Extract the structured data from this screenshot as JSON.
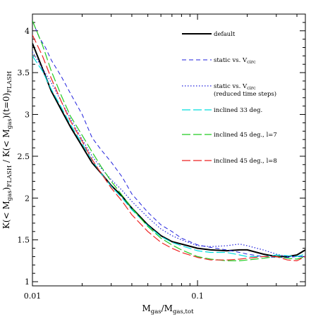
{
  "chart_data": {
    "type": "line",
    "title": "",
    "xlabel": {
      "main": "M",
      "sub1": "gas",
      "mid": "/M",
      "sub2": "gas,tot"
    },
    "ylabel": {
      "p1": "K(< M",
      "s1": "gas",
      "p2": ")",
      "s2": "FLASH",
      "p3": "  /  K(< M",
      "s3": "gas",
      "p4": ")(t=0)",
      "s4": "FLASH"
    },
    "xscale": "log",
    "xlim": [
      0.01,
      0.45
    ],
    "ylim": [
      0.95,
      4.2
    ],
    "x_ticks": [
      0.01,
      0.1
    ],
    "x_tick_labels": [
      "0.01",
      "0.1"
    ],
    "y_ticks": [
      1,
      1.5,
      2,
      2.5,
      3,
      3.5,
      4
    ],
    "y_tick_labels": [
      "1",
      "1.5",
      "2",
      "2.5",
      "3",
      "3.5",
      "4"
    ],
    "grid": false,
    "legend_position": "top-right",
    "colors": {
      "default": "#000000",
      "static_vcirc": "#2222dd",
      "static_vcirc_reduced": "#2222dd",
      "inclined_33": "#00dddd",
      "inclined_45_l7": "#22cc22",
      "inclined_45_l8": "#ee2222"
    },
    "series": [
      {
        "id": "default",
        "name": "default",
        "legend_main": "default",
        "legend_sub": "",
        "legend_extra": "",
        "color": "#000000",
        "dash": "solid",
        "width": 2,
        "x": [
          0.01,
          0.0115,
          0.013,
          0.015,
          0.017,
          0.02,
          0.023,
          0.026,
          0.03,
          0.035,
          0.04,
          0.05,
          0.06,
          0.07,
          0.08,
          0.1,
          0.12,
          0.15,
          0.18,
          0.2,
          0.25,
          0.3,
          0.35,
          0.4,
          0.45
        ],
        "y": [
          3.85,
          3.55,
          3.28,
          3.05,
          2.85,
          2.62,
          2.42,
          2.3,
          2.15,
          2.02,
          1.88,
          1.68,
          1.55,
          1.48,
          1.45,
          1.4,
          1.38,
          1.37,
          1.38,
          1.38,
          1.33,
          1.3,
          1.3,
          1.32,
          1.38
        ]
      },
      {
        "id": "static_vcirc",
        "name": "static vs. V_circ",
        "legend_main": "static vs. V",
        "legend_sub": "circ",
        "legend_extra": "",
        "color": "#2222dd",
        "dash": "6,4",
        "width": 1,
        "x": [
          0.01,
          0.011,
          0.012,
          0.013,
          0.015,
          0.017,
          0.02,
          0.023,
          0.026,
          0.03,
          0.035,
          0.04,
          0.05,
          0.06,
          0.07,
          0.08,
          0.1,
          0.12,
          0.15,
          0.18,
          0.2,
          0.25,
          0.3,
          0.35,
          0.4,
          0.45
        ],
        "y": [
          4.12,
          3.92,
          3.8,
          3.65,
          3.45,
          3.25,
          3.0,
          2.72,
          2.58,
          2.43,
          2.25,
          2.05,
          1.83,
          1.68,
          1.6,
          1.52,
          1.44,
          1.41,
          1.38,
          1.35,
          1.33,
          1.3,
          1.29,
          1.29,
          1.3,
          1.3
        ]
      },
      {
        "id": "static_vcirc_reduced",
        "name": "static vs. V_circ (reduced time steps)",
        "legend_main": "static vs. V",
        "legend_sub": "circ",
        "legend_extra": "(reduced time steps)",
        "color": "#2222dd",
        "dash": "1.5,2.5",
        "width": 1.2,
        "x": [
          0.01,
          0.0115,
          0.013,
          0.015,
          0.017,
          0.02,
          0.023,
          0.026,
          0.03,
          0.035,
          0.04,
          0.05,
          0.06,
          0.07,
          0.08,
          0.1,
          0.12,
          0.15,
          0.18,
          0.2,
          0.25,
          0.3,
          0.35,
          0.4,
          0.45
        ],
        "y": [
          3.75,
          3.55,
          3.38,
          3.15,
          2.95,
          2.7,
          2.5,
          2.36,
          2.22,
          2.09,
          1.96,
          1.77,
          1.63,
          1.55,
          1.5,
          1.43,
          1.42,
          1.43,
          1.45,
          1.43,
          1.38,
          1.33,
          1.3,
          1.3,
          1.3
        ]
      },
      {
        "id": "inclined_33",
        "name": "inclined 33 deg.",
        "legend_main": "inclined 33 deg.",
        "legend_sub": "",
        "legend_extra": "",
        "color": "#00dddd",
        "dash": "12,4",
        "width": 1.2,
        "x": [
          0.01,
          0.0115,
          0.013,
          0.015,
          0.017,
          0.02,
          0.023,
          0.026,
          0.03,
          0.035,
          0.04,
          0.05,
          0.06,
          0.07,
          0.08,
          0.1,
          0.12,
          0.15,
          0.18,
          0.2,
          0.25,
          0.3,
          0.35,
          0.4,
          0.45
        ],
        "y": [
          3.7,
          3.52,
          3.3,
          3.08,
          2.88,
          2.65,
          2.45,
          2.3,
          2.14,
          2.0,
          1.86,
          1.67,
          1.54,
          1.47,
          1.43,
          1.37,
          1.35,
          1.35,
          1.32,
          1.3,
          1.3,
          1.32,
          1.31,
          1.3,
          1.33
        ]
      },
      {
        "id": "inclined_45_l7",
        "name": "inclined 45 deg., l=7",
        "legend_main": "inclined 45 deg., l=7",
        "legend_sub": "",
        "legend_extra": "",
        "color": "#22cc22",
        "dash": "12,4",
        "width": 1.2,
        "x": [
          0.01,
          0.0115,
          0.013,
          0.015,
          0.017,
          0.02,
          0.023,
          0.026,
          0.03,
          0.035,
          0.04,
          0.05,
          0.06,
          0.07,
          0.08,
          0.1,
          0.12,
          0.15,
          0.18,
          0.2,
          0.25,
          0.3,
          0.35,
          0.4,
          0.45
        ],
        "y": [
          4.12,
          3.83,
          3.52,
          3.22,
          2.98,
          2.75,
          2.55,
          2.38,
          2.2,
          2.03,
          1.88,
          1.66,
          1.52,
          1.44,
          1.38,
          1.3,
          1.27,
          1.25,
          1.25,
          1.26,
          1.28,
          1.3,
          1.28,
          1.27,
          1.3
        ]
      },
      {
        "id": "inclined_45_l8",
        "name": "inclined 45 deg., l=8",
        "legend_main": "inclined 45 deg., l=8",
        "legend_sub": "",
        "legend_extra": "",
        "color": "#ee2222",
        "dash": "12,4",
        "width": 1.2,
        "x": [
          0.01,
          0.0115,
          0.013,
          0.015,
          0.017,
          0.02,
          0.023,
          0.026,
          0.03,
          0.035,
          0.04,
          0.05,
          0.06,
          0.07,
          0.08,
          0.1,
          0.12,
          0.15,
          0.18,
          0.2,
          0.25,
          0.3,
          0.35,
          0.4,
          0.45
        ],
        "y": [
          3.95,
          3.7,
          3.43,
          3.15,
          2.92,
          2.68,
          2.46,
          2.3,
          2.12,
          1.96,
          1.8,
          1.6,
          1.47,
          1.4,
          1.35,
          1.29,
          1.26,
          1.26,
          1.27,
          1.28,
          1.3,
          1.3,
          1.26,
          1.25,
          1.3
        ]
      }
    ]
  }
}
